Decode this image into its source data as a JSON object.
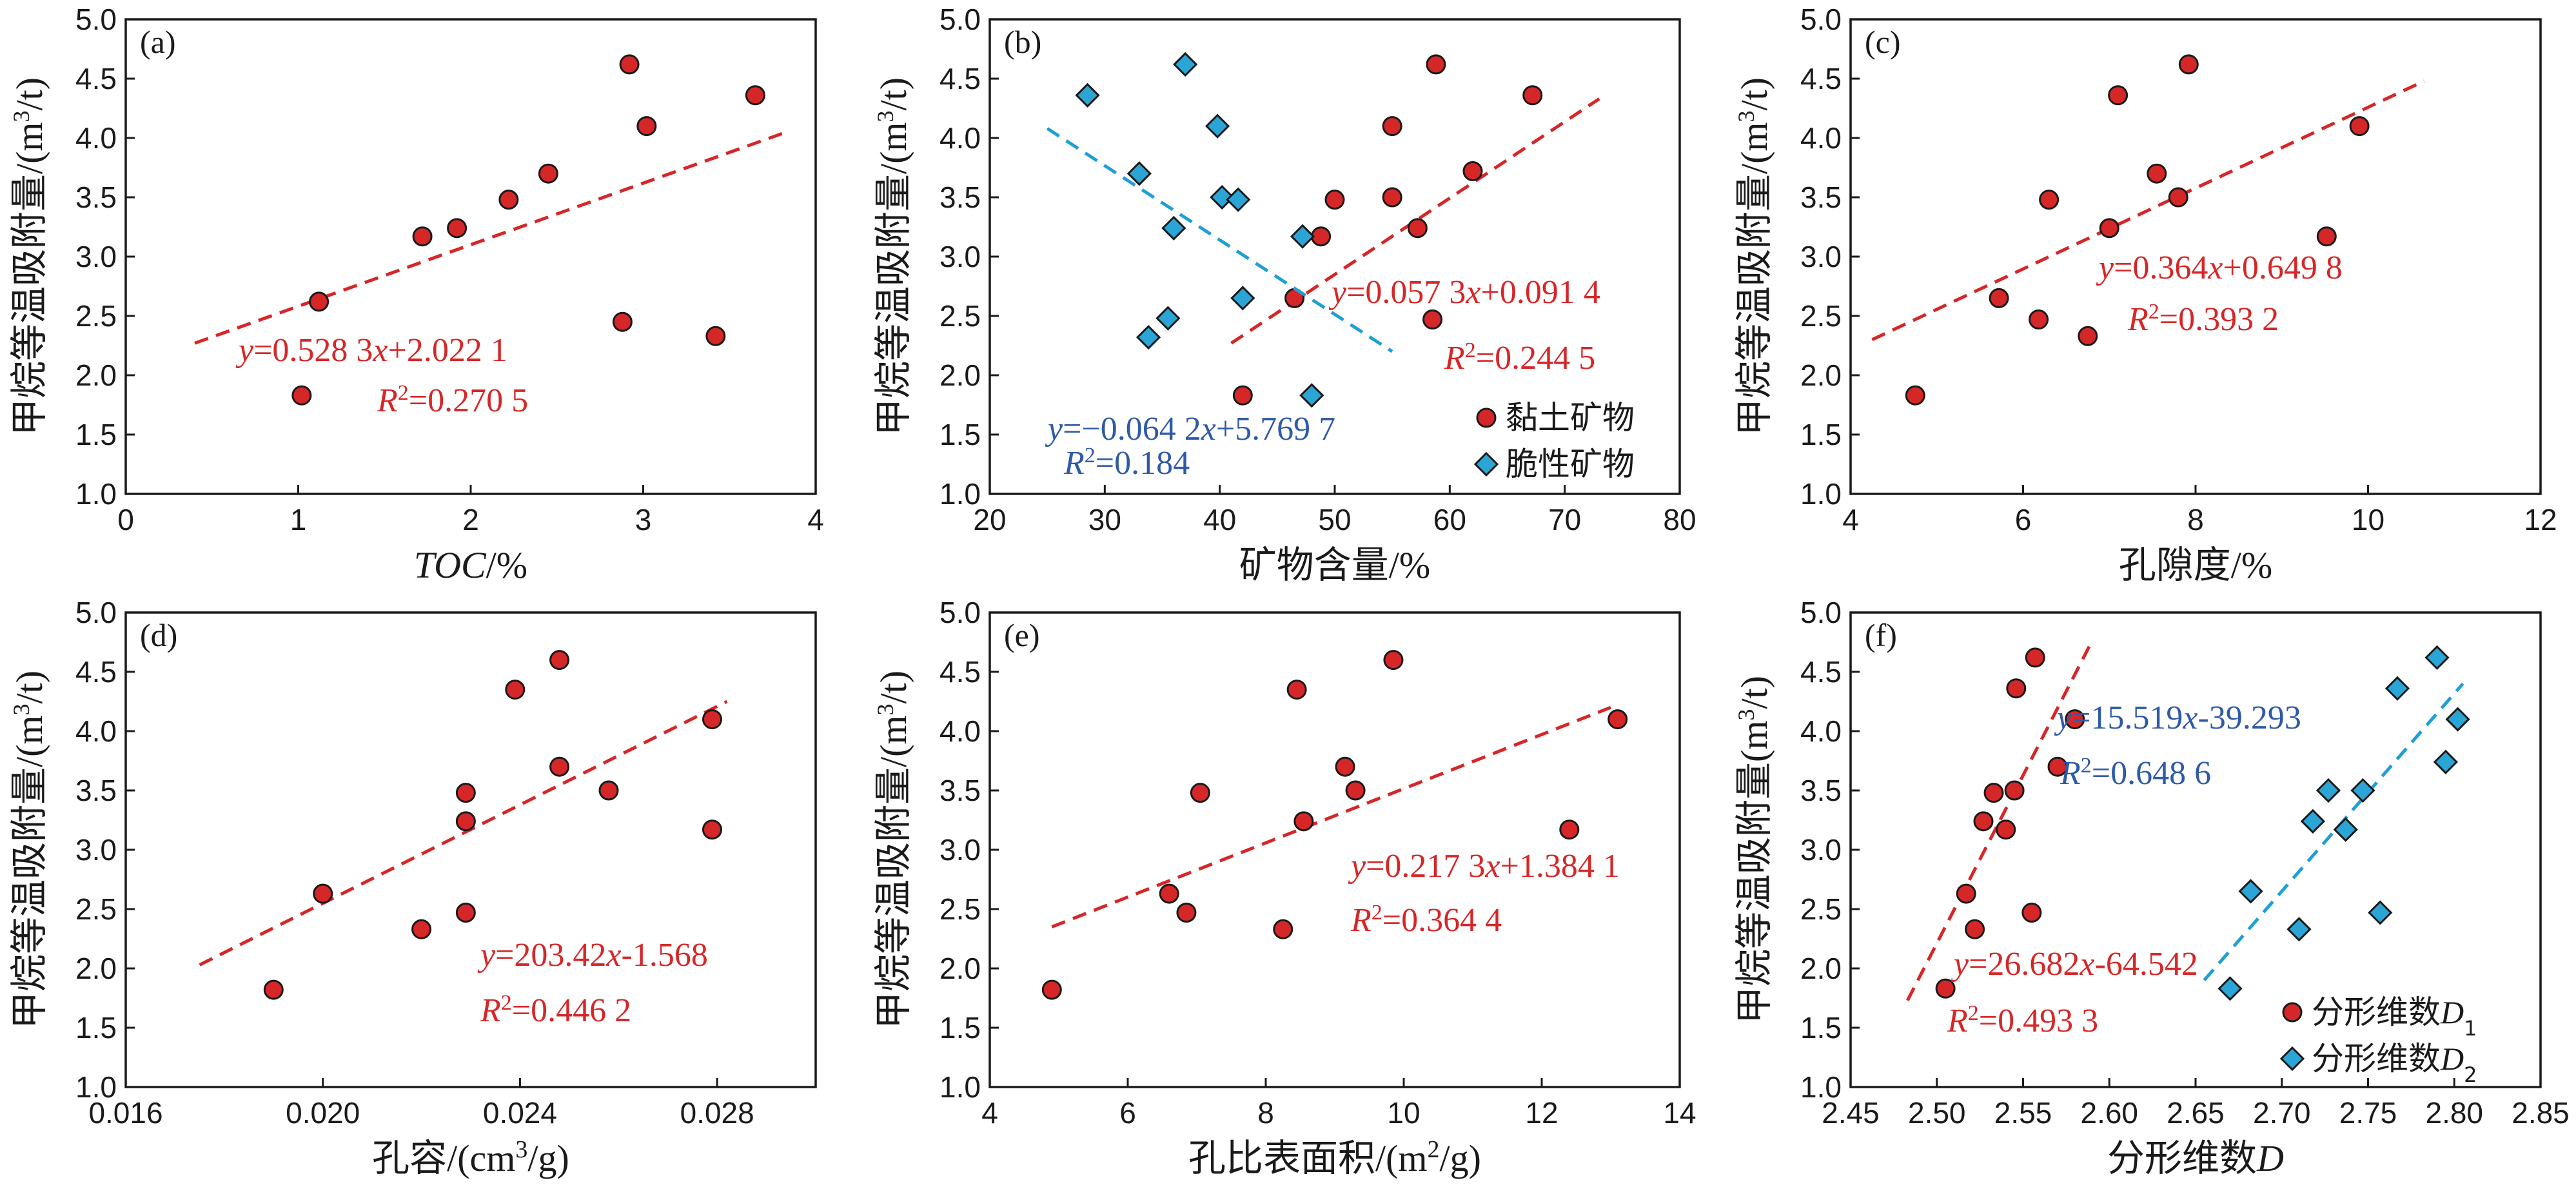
{
  "colors": {
    "red_marker": "#d62728",
    "red_line": "#d62728",
    "blue_marker": "#2aa5d6",
    "blue_line": "#1f9fd6",
    "eq_red": "#d62728",
    "eq_blue": "#2f5aa8",
    "axis": "#1a1a1a"
  },
  "chart_data": [
    {
      "type": "scatter",
      "panel_label": "(a)",
      "ylabel": "甲烷等温吸附量/(m3/t)",
      "xlabel": "TOC/%",
      "xlim": [
        0,
        4
      ],
      "ylim": [
        1.0,
        5.0
      ],
      "xticks": [
        "0",
        "1",
        "2",
        "3",
        "4"
      ],
      "yticks": [
        "1.0",
        "1.5",
        "2.0",
        "2.5",
        "3.0",
        "3.5",
        "4.0",
        "4.5",
        "5.0"
      ],
      "series": [
        {
          "marker": "circle",
          "color": "red",
          "x": [
            1.02,
            1.12,
            1.72,
            1.92,
            2.22,
            2.45,
            2.88,
            2.92,
            3.02,
            3.42,
            3.65
          ],
          "y": [
            1.83,
            2.62,
            3.17,
            3.24,
            3.48,
            3.7,
            2.45,
            4.62,
            4.1,
            2.33,
            4.36
          ],
          "fit": {
            "x": [
              0.4,
              3.85
            ],
            "y": [
              2.27,
              4.06
            ],
            "color": "red"
          },
          "equation": {
            "pre": "y",
            "body": "=0.528 3",
            "var": "x",
            "post": "+2.022 1"
          },
          "r2": {
            "value": "=0.270 5"
          }
        }
      ]
    },
    {
      "type": "scatter",
      "panel_label": "(b)",
      "ylabel": "甲烷等温吸附量/(m3/t)",
      "xlabel": "矿物含量/%",
      "xlim": [
        20,
        80
      ],
      "ylim": [
        1.0,
        5.0
      ],
      "xticks": [
        "20",
        "30",
        "40",
        "50",
        "60",
        "70",
        "80"
      ],
      "yticks": [
        "1.0",
        "1.5",
        "2.0",
        "2.5",
        "3.0",
        "3.5",
        "4.0",
        "4.5",
        "5.0"
      ],
      "series": [
        {
          "name": "黏土矿物",
          "marker": "circle",
          "color": "red",
          "x": [
            42.0,
            46.5,
            48.8,
            50.0,
            55.0,
            55.0,
            57.2,
            58.5,
            58.8,
            62.0,
            67.2
          ],
          "y": [
            1.83,
            2.65,
            3.17,
            3.48,
            3.5,
            4.1,
            3.24,
            2.47,
            4.62,
            3.72,
            4.36
          ],
          "fit": {
            "x": [
              41.0,
              73.0
            ],
            "y": [
              2.27,
              4.33
            ],
            "color": "red"
          },
          "equation": {
            "pre": "y",
            "body": "=0.057 3",
            "var": "x",
            "post": "+0.091 4"
          },
          "r2": {
            "value": "=0.244 5"
          }
        },
        {
          "name": "脆性矿物",
          "marker": "diamond",
          "color": "blue",
          "x": [
            28.5,
            33.0,
            33.8,
            35.5,
            36.0,
            37.0,
            39.8,
            40.2,
            41.6,
            42.0,
            47.2,
            48.0
          ],
          "y": [
            4.36,
            3.7,
            2.32,
            2.48,
            3.24,
            4.62,
            4.1,
            3.5,
            3.48,
            2.65,
            3.17,
            1.83
          ],
          "fit": {
            "x": [
              25.0,
              55.0
            ],
            "y": [
              4.08,
              2.2
            ],
            "color": "blue"
          },
          "equation": {
            "pre": "y",
            "body": "=−0.064 2",
            "var": "x",
            "post": "+5.769 7"
          },
          "r2": {
            "value": "=0.184"
          }
        }
      ]
    },
    {
      "type": "scatter",
      "panel_label": "(c)",
      "ylabel": "甲烷等温吸附量/(m3/t)",
      "xlabel": "孔隙度/%",
      "xlim": [
        4,
        12
      ],
      "ylim": [
        1.0,
        5.0
      ],
      "xticks": [
        "4",
        "6",
        "8",
        "10",
        "12"
      ],
      "yticks": [
        "1.0",
        "1.5",
        "2.0",
        "2.5",
        "3.0",
        "3.5",
        "4.0",
        "4.5",
        "5.0"
      ],
      "series": [
        {
          "marker": "circle",
          "color": "red",
          "x": [
            4.75,
            5.72,
            6.18,
            6.3,
            6.75,
            7.0,
            7.1,
            7.55,
            7.8,
            7.92,
            9.52,
            9.9
          ],
          "y": [
            1.83,
            2.65,
            2.47,
            3.48,
            2.33,
            3.24,
            4.36,
            3.7,
            3.5,
            4.62,
            3.17,
            4.1
          ],
          "fit": {
            "x": [
              4.25,
              10.65
            ],
            "y": [
              2.3,
              4.48
            ],
            "color": "red"
          },
          "equation": {
            "pre": "y",
            "body": "=0.364",
            "var": "x",
            "post": "+0.649 8"
          },
          "r2": {
            "value": "=0.393 2"
          }
        }
      ]
    },
    {
      "type": "scatter",
      "panel_label": "(d)",
      "ylabel": "甲烷等温吸附量/(m3/t)",
      "xlabel": "孔容/(cm3/g)",
      "xlim": [
        0.016,
        0.03
      ],
      "ylim": [
        1.0,
        5.0
      ],
      "xticks": [
        "0.016",
        "0.020",
        "0.024",
        "0.028"
      ],
      "xtick_values": [
        0.016,
        0.02,
        0.024,
        0.028
      ],
      "yticks": [
        "1.0",
        "1.5",
        "2.0",
        "2.5",
        "3.0",
        "3.5",
        "4.0",
        "4.5",
        "5.0"
      ],
      "series": [
        {
          "marker": "circle",
          "color": "red",
          "x": [
            0.019,
            0.02,
            0.022,
            0.0229,
            0.0229,
            0.0229,
            0.0239,
            0.0248,
            0.0248,
            0.0258,
            0.0279,
            0.0279
          ],
          "y": [
            1.82,
            2.63,
            2.33,
            2.47,
            3.24,
            3.48,
            4.35,
            3.7,
            4.6,
            3.5,
            4.1,
            3.17
          ],
          "fit": {
            "x": [
              0.0175,
              0.0282
            ],
            "y": [
              2.03,
              4.25
            ],
            "color": "red"
          },
          "equation": {
            "pre": "y",
            "body": "=203.42",
            "var": "x",
            "post": "-1.568"
          },
          "r2": {
            "value": "=0.446 2"
          }
        }
      ]
    },
    {
      "type": "scatter",
      "panel_label": "(e)",
      "ylabel": "甲烷等温吸附量/(m3/t)",
      "xlabel": "孔比表面积/(m2/g)",
      "xlim": [
        4,
        14
      ],
      "ylim": [
        1.0,
        5.0
      ],
      "xticks": [
        "4",
        "6",
        "8",
        "10",
        "12",
        "14"
      ],
      "yticks": [
        "1.0",
        "1.5",
        "2.0",
        "2.5",
        "3.0",
        "3.5",
        "4.0",
        "4.5",
        "5.0"
      ],
      "series": [
        {
          "marker": "circle",
          "color": "red",
          "x": [
            4.9,
            6.6,
            6.85,
            7.05,
            8.25,
            8.45,
            8.55,
            9.15,
            9.3,
            9.85,
            12.4,
            13.1
          ],
          "y": [
            1.82,
            2.63,
            2.47,
            3.48,
            2.33,
            4.35,
            3.24,
            3.7,
            3.5,
            4.6,
            3.17,
            4.1
          ],
          "fit": {
            "x": [
              4.9,
              13.0
            ],
            "y": [
              2.35,
              4.2
            ],
            "color": "red"
          },
          "equation": {
            "pre": "y",
            "body": "=0.217 3",
            "var": "x",
            "post": "+1.384 1"
          },
          "r2": {
            "value": "=0.364 4"
          }
        }
      ]
    },
    {
      "type": "scatter",
      "panel_label": "(f)",
      "ylabel": "甲烷等温吸附量(m3/t)",
      "xlabel": "分形维数D",
      "xlim": [
        2.45,
        2.85
      ],
      "ylim": [
        1.0,
        5.0
      ],
      "xticks": [
        "2.45",
        "2.50",
        "2.55",
        "2.60",
        "2.65",
        "2.70",
        "2.75",
        "2.80",
        "2.85"
      ],
      "yticks": [
        "1.0",
        "1.5",
        "2.0",
        "2.5",
        "3.0",
        "3.5",
        "4.0",
        "4.5",
        "5.0"
      ],
      "series": [
        {
          "name": "分形维数D1",
          "marker": "circle",
          "color": "red",
          "x": [
            2.505,
            2.517,
            2.522,
            2.527,
            2.533,
            2.54,
            2.545,
            2.546,
            2.555,
            2.557,
            2.57,
            2.58
          ],
          "y": [
            1.83,
            2.63,
            2.33,
            3.24,
            3.48,
            3.17,
            3.5,
            4.36,
            2.47,
            4.62,
            3.7,
            4.1
          ],
          "fit": {
            "x": [
              2.483,
              2.59
            ],
            "y": [
              1.73,
              4.76
            ],
            "color": "red"
          },
          "equation": {
            "pre": "y",
            "body": "=26.682",
            "var": "x",
            "post": "-64.542"
          },
          "r2": {
            "value": "=0.493 3"
          }
        },
        {
          "name": "分形维数D2",
          "marker": "diamond",
          "color": "blue",
          "x": [
            2.67,
            2.682,
            2.71,
            2.718,
            2.727,
            2.737,
            2.747,
            2.757,
            2.767,
            2.79,
            2.795,
            2.802
          ],
          "y": [
            1.83,
            2.65,
            2.33,
            3.24,
            3.5,
            3.17,
            3.5,
            2.47,
            4.36,
            4.62,
            3.74,
            4.1
          ],
          "fit": {
            "x": [
              2.655,
              2.805
            ],
            "y": [
              1.9,
              4.4
            ],
            "color": "blue"
          },
          "equation": {
            "pre": "y",
            "body": "=15.519",
            "var": "x",
            "post": "-39.293"
          },
          "r2": {
            "value": "=0.648 6"
          }
        }
      ]
    }
  ]
}
